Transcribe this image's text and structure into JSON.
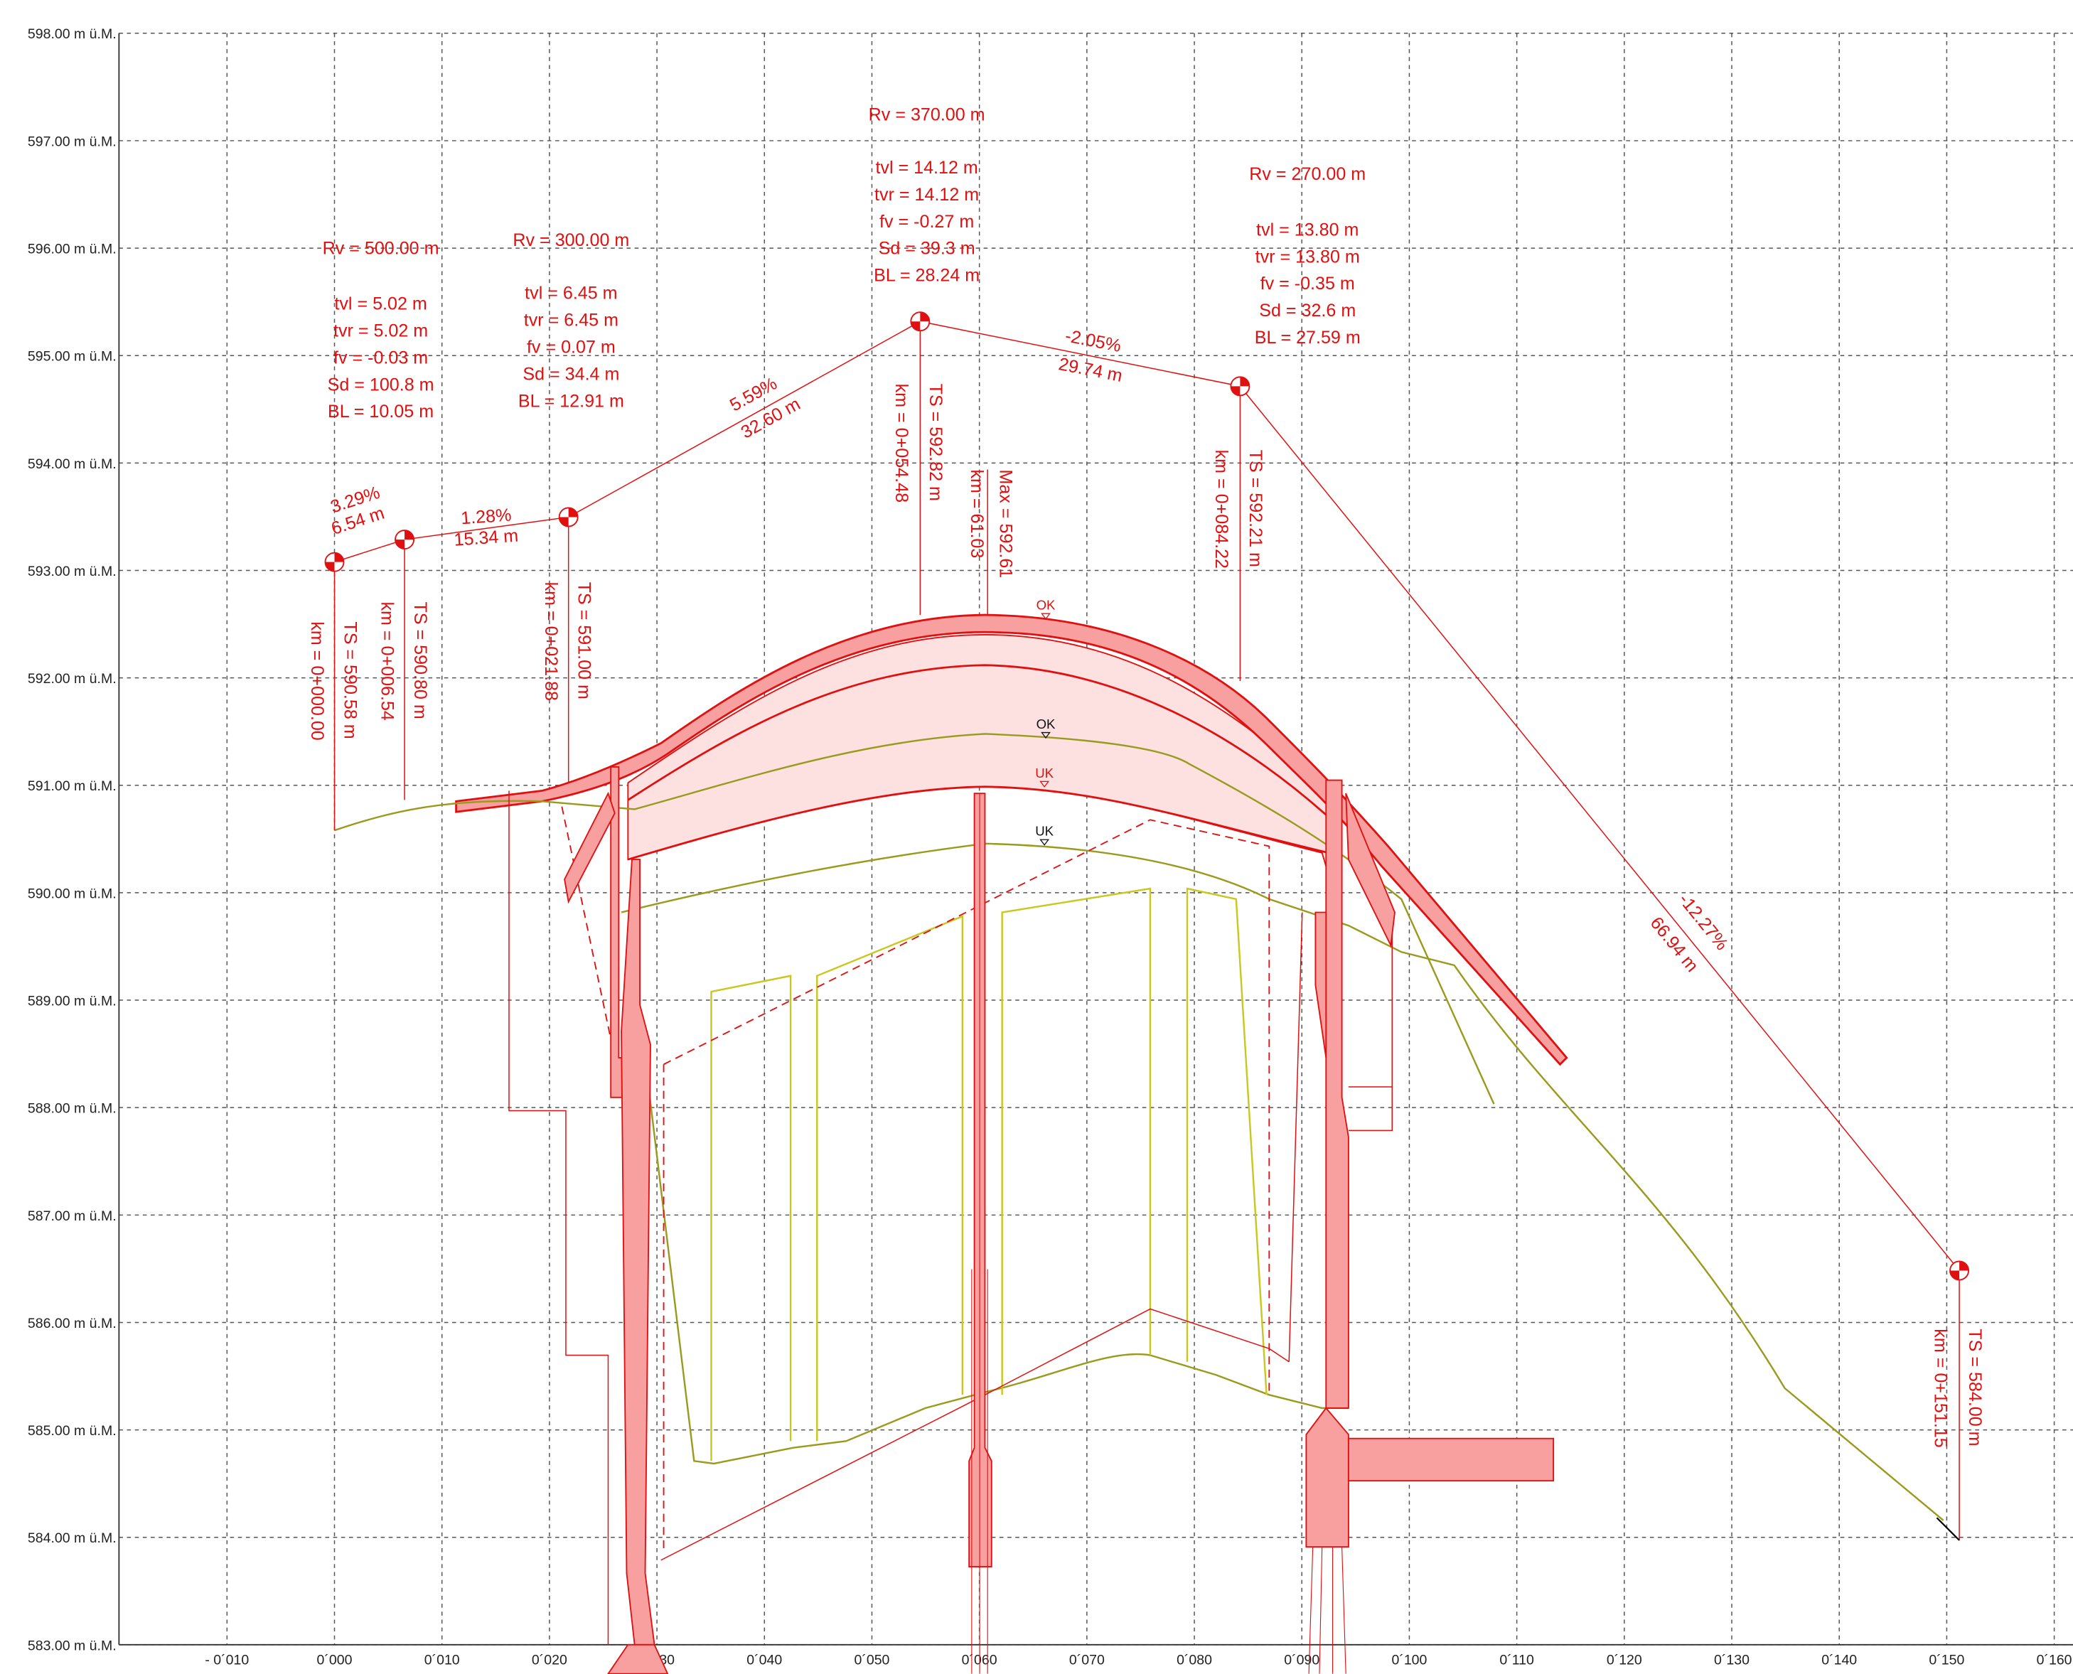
{
  "y_axis": {
    "labels": [
      "598.00 m ü.M.",
      "597.00 m ü.M.",
      "596.00 m ü.M.",
      "595.00 m ü.M.",
      "594.00 m ü.M.",
      "593.00 m ü.M.",
      "592.00 m ü.M.",
      "591.00 m ü.M.",
      "590.00 m ü.M.",
      "589.00 m ü.M.",
      "588.00 m ü.M.",
      "587.00 m ü.M.",
      "586.00 m ü.M.",
      "585.00 m ü.M.",
      "584.00 m ü.M.",
      "583.00 m ü.M."
    ]
  },
  "x_axis": {
    "labels": [
      "- 0´010",
      "0´000",
      "0´010",
      "0´020",
      "0´030",
      "0´040",
      "0´050",
      "0´060",
      "0´070",
      "0´080",
      "0´090",
      "0´100",
      "0´110",
      "0´120",
      "0´130",
      "0´140",
      "0´150",
      "0´160"
    ]
  },
  "vertices": [
    {
      "rv": "Rv = 500.00 m",
      "tvl": "tvl = 5.02 m",
      "tvr": "tvr = 5.02 m",
      "fv": "fv = -0.03 m",
      "sd": "Sd = 100.8 m",
      "bl": "BL = 10.05 m"
    },
    {
      "rv": "Rv = 300.00 m",
      "tvl": "tvl = 6.45 m",
      "tvr": "tvr = 6.45 m",
      "fv": "fv = 0.07 m",
      "sd": "Sd = 34.4 m",
      "bl": "BL = 12.91 m"
    },
    {
      "rv": "Rv = 370.00 m",
      "tvl": "tvl = 14.12 m",
      "tvr": "tvr = 14.12 m",
      "fv": "fv = -0.27 m",
      "sd": "Sd = 39.3 m",
      "bl": "BL = 28.24 m"
    },
    {
      "rv": "Rv = 270.00 m",
      "tvl": "tvl = 13.80 m",
      "tvr": "tvr = 13.80 m",
      "fv": "fv = -0.35 m",
      "sd": "Sd = 32.6 m",
      "bl": "BL = 27.59 m"
    }
  ],
  "stations": [
    {
      "km": "km = 0+000.00",
      "ts": "TS = 590.58 m"
    },
    {
      "km": "km = 0+006.54",
      "ts": "TS = 590.80 m"
    },
    {
      "km": "km = 0+021.88",
      "ts": "TS = 591.00 m"
    },
    {
      "km": "km = 0+054.48",
      "ts": "TS = 592.82 m"
    },
    {
      "km": "km = 61.03",
      "ts": "Max = 592.61"
    },
    {
      "km": "km = 0+084.22",
      "ts": "TS = 592.21 m"
    },
    {
      "km": "km = 0+151.15",
      "ts": "TS = 584.00 m"
    }
  ],
  "grades": [
    {
      "grade": "3.29%",
      "length": "6.54 m"
    },
    {
      "grade": "1.28%",
      "length": "15.34 m"
    },
    {
      "grade": "5.59%",
      "length": "32.60 m"
    },
    {
      "grade": "-2.05%",
      "length": "29.74 m"
    },
    {
      "grade": "-12.27%",
      "length": "66.94 m"
    }
  ],
  "markers": [
    "OK",
    "OK",
    "UK",
    "UK"
  ]
}
